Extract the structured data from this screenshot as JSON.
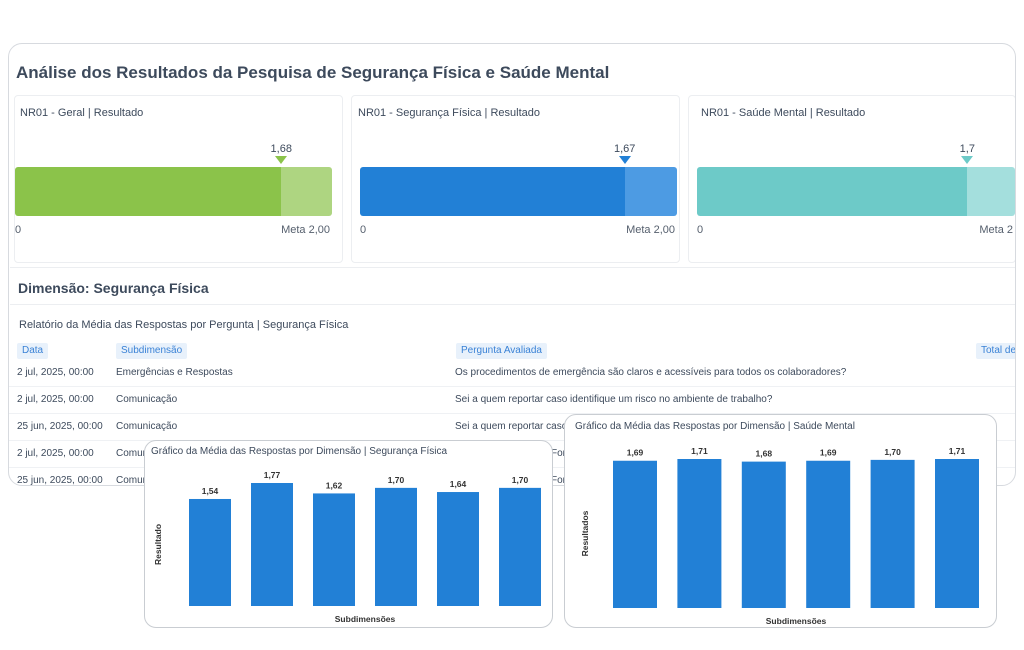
{
  "page": {
    "title": "Análise dos Resultados da Pesquisa de Segurança Física e Saúde Mental"
  },
  "kpis": [
    {
      "title": "NR01 - Geral | Resultado",
      "value_label": "1,68",
      "value": 1.68,
      "goal": 2.0,
      "min_label": "0",
      "goal_label": "Meta 2,00",
      "color": "#8bc34a",
      "rest_color": "#aed581"
    },
    {
      "title": "NR01 - Segurança Física | Resultado",
      "value_label": "1,67",
      "value": 1.67,
      "goal": 2.0,
      "min_label": "0",
      "goal_label": "Meta 2,00",
      "color": "#2280d6",
      "rest_color": "#4d9be3"
    },
    {
      "title": "NR01 - Saúde Mental | Resultado",
      "value_label": "1,7",
      "value": 1.7,
      "goal": 2.0,
      "min_label": "0",
      "goal_label": "Meta 2",
      "color": "#6dcac8",
      "rest_color": "#a4dfdd"
    }
  ],
  "dimension": {
    "title": "Dimensão: Segurança Física"
  },
  "table": {
    "title": "Relatório da Média das Respostas por Pergunta | Segurança Física",
    "headers": [
      "Data",
      "Subdimensão",
      "Pergunta Avaliada",
      "Total de"
    ],
    "rows": [
      {
        "date": "2 jul, 2025, 00:00",
        "sub": "Emergências e Respostas",
        "question": "Os procedimentos de emergência são claros e acessíveis para todos os colaboradores?"
      },
      {
        "date": "2 jul, 2025, 00:00",
        "sub": "Comunicação",
        "question": "Sei a quem reportar caso identifique um risco no ambiente de trabalho?"
      },
      {
        "date": "25 jun, 2025, 00:00",
        "sub": "Comunicação",
        "question": "Sei a quem reportar caso i"
      },
      {
        "date": "2 jul, 2025, 00:00",
        "sub": "Comun",
        "question": "For"
      },
      {
        "date": "25 jun, 2025, 00:00",
        "sub": "Comun",
        "question": "For"
      }
    ]
  },
  "chart_data": [
    {
      "type": "bar",
      "title": "Gráfico da Média das Respostas por Dimensão | Segurança Física",
      "xlabel": "Subdimensões",
      "ylabel": "Resultado",
      "values": [
        1.54,
        1.77,
        1.62,
        1.7,
        1.64,
        1.7
      ],
      "value_labels": [
        "1,54",
        "1,77",
        "1,62",
        "1,70",
        "1,64",
        "1,70"
      ],
      "ylim": [
        0,
        1.77
      ],
      "color": "#2280d6"
    },
    {
      "type": "bar",
      "title": "Gráfico da Média das Respostas por Dimensão | Saúde Mental",
      "xlabel": "Subdimensões",
      "ylabel": "Resultados",
      "values": [
        1.69,
        1.71,
        1.68,
        1.69,
        1.7,
        1.71
      ],
      "value_labels": [
        "1,69",
        "1,71",
        "1,68",
        "1,69",
        "1,70",
        "1,71"
      ],
      "ylim": [
        0,
        1.71
      ],
      "color": "#2280d6"
    }
  ]
}
